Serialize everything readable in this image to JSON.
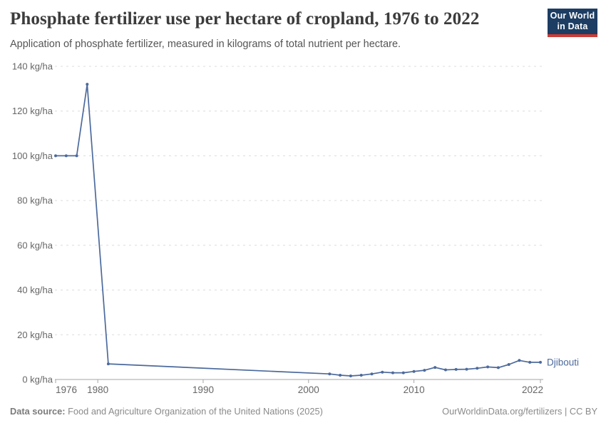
{
  "header": {
    "title": "Phosphate fertilizer use per hectare of cropland, 1976 to 2022",
    "subtitle": "Application of phosphate fertilizer, measured in kilograms of total nutrient per hectare."
  },
  "logo": {
    "line1": "Our World",
    "line2": "in Data",
    "bg_color": "#1d3d63",
    "accent_color": "#cc3b34"
  },
  "chart_data": {
    "type": "line",
    "title": "Phosphate fertilizer use per hectare of cropland, 1976 to 2022",
    "xlabel": "",
    "ylabel": "kg/ha",
    "unit": "kg/ha",
    "xlim": [
      1976,
      2022
    ],
    "ylim": [
      0,
      140
    ],
    "grid": "dashed-horizontal",
    "legend_position": "end-of-line",
    "x_ticks": [
      1976,
      1980,
      1990,
      2000,
      2010,
      2022
    ],
    "y_ticks": [
      0,
      20,
      40,
      60,
      80,
      100,
      120,
      140
    ],
    "series": [
      {
        "name": "Djibouti",
        "color": "#4C6A9C",
        "points": [
          [
            1976,
            100
          ],
          [
            1977,
            100
          ],
          [
            1978,
            100
          ],
          [
            1979,
            132
          ],
          [
            1981,
            7
          ],
          [
            2002,
            2.5
          ],
          [
            2003,
            1.9
          ],
          [
            2004,
            1.6
          ],
          [
            2005,
            1.9
          ],
          [
            2006,
            2.5
          ],
          [
            2007,
            3.3
          ],
          [
            2008,
            3.0
          ],
          [
            2009,
            3.0
          ],
          [
            2010,
            3.6
          ],
          [
            2011,
            4.1
          ],
          [
            2012,
            5.4
          ],
          [
            2013,
            4.3
          ],
          [
            2014,
            4.5
          ],
          [
            2015,
            4.6
          ],
          [
            2016,
            5.0
          ],
          [
            2017,
            5.6
          ],
          [
            2018,
            5.3
          ],
          [
            2019,
            6.7
          ],
          [
            2020,
            8.5
          ],
          [
            2021,
            7.7
          ],
          [
            2022,
            7.7
          ]
        ],
        "note": "no data points between 1981 and 2002; line connects directly"
      }
    ],
    "colors": {
      "gridline": "#dcdcdc",
      "axis": "#a6a6a6",
      "tick_label": "#666666"
    }
  },
  "footer": {
    "source_label": "Data source:",
    "source": "Food and Agriculture Organization of the United Nations (2025)",
    "link": "OurWorldinData.org/fertilizers",
    "separator": "|",
    "license": "CC BY"
  }
}
